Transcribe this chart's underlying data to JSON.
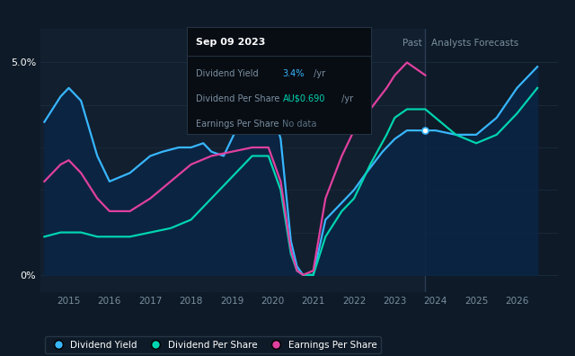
{
  "bg_color": "#0e1a27",
  "plot_bg_color": "#0e1a27",
  "past_shade_color": "#121f2e",
  "grid_color": "#1a2d3f",
  "text_color": "#ffffff",
  "label_color": "#7a8fa0",
  "tooltip_bg": "#080d14",
  "tooltip_border": "#253545",
  "div_yield_color": "#38b6ff",
  "div_per_share_color": "#00d4b0",
  "eps_color": "#e040a0",
  "div_yield_fill_color": "#0a2545",
  "past_line_x": 2023.75,
  "ylim": [
    -0.004,
    0.058
  ],
  "xmin": 2014.3,
  "xmax": 2027.0,
  "xlabel_years": [
    2015,
    2016,
    2017,
    2018,
    2019,
    2020,
    2021,
    2022,
    2023,
    2024,
    2025,
    2026
  ],
  "div_yield": {
    "x": [
      2014.4,
      2014.8,
      2015.0,
      2015.3,
      2015.7,
      2016.0,
      2016.5,
      2017.0,
      2017.3,
      2017.7,
      2018.0,
      2018.3,
      2018.5,
      2018.8,
      2019.0,
      2019.3,
      2019.6,
      2019.9,
      2020.2,
      2020.45,
      2020.6,
      2020.75,
      2021.0,
      2021.3,
      2021.7,
      2022.0,
      2022.3,
      2022.7,
      2023.0,
      2023.3,
      2023.75,
      2024.0,
      2024.5,
      2025.0,
      2025.5,
      2026.0,
      2026.5
    ],
    "y": [
      0.036,
      0.042,
      0.044,
      0.041,
      0.028,
      0.022,
      0.024,
      0.028,
      0.029,
      0.03,
      0.03,
      0.031,
      0.029,
      0.028,
      0.032,
      0.038,
      0.04,
      0.042,
      0.032,
      0.008,
      0.002,
      0.0,
      0.0,
      0.013,
      0.017,
      0.02,
      0.024,
      0.029,
      0.032,
      0.034,
      0.034,
      0.034,
      0.033,
      0.033,
      0.037,
      0.044,
      0.049
    ]
  },
  "div_per_share": {
    "x": [
      2014.4,
      2014.8,
      2015.0,
      2015.3,
      2015.7,
      2016.0,
      2016.5,
      2017.0,
      2017.5,
      2018.0,
      2018.5,
      2019.0,
      2019.5,
      2019.9,
      2020.2,
      2020.45,
      2020.6,
      2020.75,
      2021.0,
      2021.3,
      2021.7,
      2022.0,
      2022.4,
      2022.8,
      2023.0,
      2023.3,
      2023.75,
      2024.0,
      2024.5,
      2025.0,
      2025.5,
      2026.0,
      2026.5
    ],
    "y": [
      0.009,
      0.01,
      0.01,
      0.01,
      0.009,
      0.009,
      0.009,
      0.01,
      0.011,
      0.013,
      0.018,
      0.023,
      0.028,
      0.028,
      0.02,
      0.005,
      0.001,
      0.0,
      0.0,
      0.009,
      0.015,
      0.018,
      0.026,
      0.033,
      0.037,
      0.039,
      0.039,
      0.037,
      0.033,
      0.031,
      0.033,
      0.038,
      0.044
    ]
  },
  "eps": {
    "x": [
      2014.4,
      2014.8,
      2015.0,
      2015.3,
      2015.7,
      2016.0,
      2016.5,
      2017.0,
      2017.5,
      2018.0,
      2018.5,
      2019.0,
      2019.5,
      2019.9,
      2020.2,
      2020.45,
      2020.6,
      2020.75,
      2021.0,
      2021.3,
      2021.7,
      2022.0,
      2022.4,
      2022.8,
      2023.0,
      2023.3,
      2023.75
    ],
    "y": [
      0.022,
      0.026,
      0.027,
      0.024,
      0.018,
      0.015,
      0.015,
      0.018,
      0.022,
      0.026,
      0.028,
      0.029,
      0.03,
      0.03,
      0.022,
      0.006,
      0.001,
      0.0,
      0.001,
      0.018,
      0.028,
      0.034,
      0.039,
      0.044,
      0.047,
      0.05,
      0.047
    ]
  },
  "legend_items": [
    {
      "label": "Dividend Yield",
      "color": "#38b6ff"
    },
    {
      "label": "Dividend Per Share",
      "color": "#00d4b0"
    },
    {
      "label": "Earnings Per Share",
      "color": "#e040a0"
    }
  ],
  "tooltip": {
    "title": "Sep 09 2023",
    "rows": [
      {
        "label": "Dividend Yield",
        "value": "3.4%",
        "value_color": "#38b6ff",
        "suffix": " /yr"
      },
      {
        "label": "Dividend Per Share",
        "value": "AU$0.690",
        "value_color": "#00d4b0",
        "suffix": " /yr"
      },
      {
        "label": "Earnings Per Share",
        "value": "No data",
        "value_color": "#5a7080",
        "suffix": ""
      }
    ]
  }
}
